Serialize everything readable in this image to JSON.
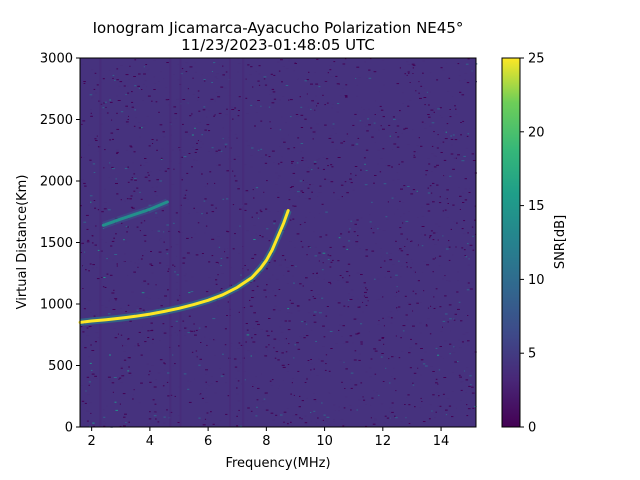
{
  "chart_data": {
    "type": "heatmap",
    "title": "Ionogram Jicamarca-Ayacucho Polarization NE45°",
    "subtitle": "11/23/2023-01:48:05 UTC",
    "xlabel": "Frequency(MHz)",
    "ylabel": "Virtual Distance(Km)",
    "xlim": [
      1.6,
      15.2
    ],
    "ylim": [
      0,
      3000
    ],
    "x_ticks": [
      2,
      4,
      6,
      8,
      10,
      12,
      14
    ],
    "y_ticks": [
      0,
      500,
      1000,
      1500,
      2000,
      2500,
      3000
    ],
    "colorbar": {
      "label": "SNR[dB]",
      "range": [
        0,
        25
      ],
      "ticks": [
        0,
        5,
        10,
        15,
        20,
        25
      ],
      "colormap": "viridis"
    },
    "grid": false,
    "background_snr_db": 1.5,
    "echo_traces": [
      {
        "trace": "first-hop",
        "snr_db": 25,
        "points": [
          {
            "x": 1.6,
            "y": 850
          },
          {
            "x": 2.0,
            "y": 862
          },
          {
            "x": 2.5,
            "y": 872
          },
          {
            "x": 3.0,
            "y": 885
          },
          {
            "x": 3.5,
            "y": 900
          },
          {
            "x": 4.0,
            "y": 918
          },
          {
            "x": 4.5,
            "y": 940
          },
          {
            "x": 5.0,
            "y": 965
          },
          {
            "x": 5.5,
            "y": 995
          },
          {
            "x": 6.0,
            "y": 1030
          },
          {
            "x": 6.5,
            "y": 1075
          },
          {
            "x": 7.0,
            "y": 1135
          },
          {
            "x": 7.5,
            "y": 1215
          },
          {
            "x": 7.8,
            "y": 1290
          },
          {
            "x": 8.0,
            "y": 1355
          },
          {
            "x": 8.2,
            "y": 1440
          },
          {
            "x": 8.4,
            "y": 1550
          },
          {
            "x": 8.6,
            "y": 1660
          },
          {
            "x": 8.75,
            "y": 1760
          }
        ]
      },
      {
        "trace": "second-hop",
        "snr_db": 14,
        "points": [
          {
            "x": 2.4,
            "y": 1640
          },
          {
            "x": 3.0,
            "y": 1690
          },
          {
            "x": 3.5,
            "y": 1730
          },
          {
            "x": 4.0,
            "y": 1770
          },
          {
            "x": 4.6,
            "y": 1830
          }
        ]
      }
    ],
    "interference_bands_mhz": [
      2.3,
      4.7,
      5.05,
      6.75,
      7.2
    ]
  }
}
